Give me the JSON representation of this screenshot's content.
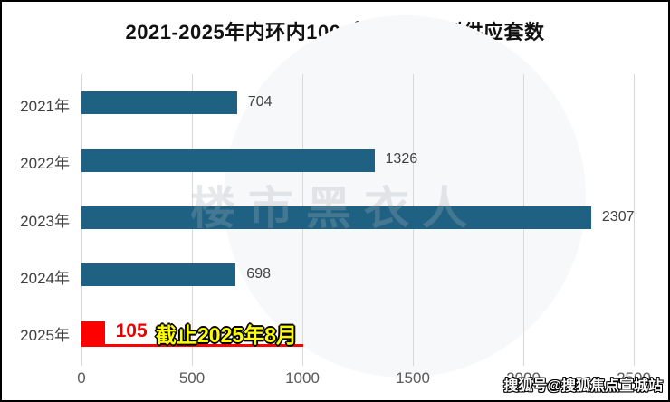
{
  "chart_data": {
    "type": "bar",
    "orientation": "horizontal",
    "title": "2021-2025年内环内100㎡及以下户型供应套数",
    "categories": [
      "2021年",
      "2022年",
      "2023年",
      "2024年",
      "2025年"
    ],
    "values": [
      704,
      1326,
      2307,
      698,
      105
    ],
    "value_labels": [
      "704",
      "1326",
      "2307",
      "698",
      "105"
    ],
    "xlim": [
      0,
      2500
    ],
    "x_ticks": [
      0,
      500,
      1000,
      1500,
      2000,
      2500
    ],
    "grid": "vertical-gridlines",
    "legend": "none",
    "bar_color": "#1f6183",
    "highlight_index": 4,
    "highlight_bar_color": "#fe0000",
    "highlight_value_color": "#e60000",
    "annotation": {
      "text": "截止2025年8月",
      "attached_to_category": "2025年",
      "text_color": "#ffff00",
      "outline_color": "#000000",
      "underline_color": "#fe0000"
    }
  },
  "watermarks": {
    "center_text": "楼市黑衣人",
    "bottom_right_text": "搜狐号@搜狐焦点宣城站"
  }
}
